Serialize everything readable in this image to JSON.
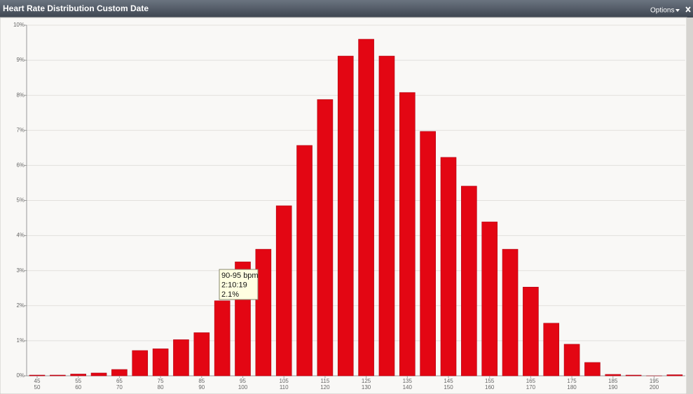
{
  "window": {
    "title": "Heart Rate Distribution Custom Date",
    "options": "Options"
  },
  "chart_data": {
    "type": "bar",
    "color": "#e30613",
    "grid": true,
    "categories": [
      [
        "45",
        "50"
      ],
      null,
      [
        "55",
        "60"
      ],
      null,
      [
        "65",
        "70"
      ],
      null,
      [
        "75",
        "80"
      ],
      null,
      [
        "85",
        "90"
      ],
      null,
      [
        "95",
        "100"
      ],
      null,
      [
        "105",
        "110"
      ],
      null,
      [
        "115",
        "120"
      ],
      null,
      [
        "125",
        "130"
      ],
      null,
      [
        "135",
        "140"
      ],
      null,
      [
        "145",
        "150"
      ],
      null,
      [
        "155",
        "160"
      ],
      null,
      [
        "165",
        "170"
      ],
      null,
      [
        "175",
        "180"
      ],
      null,
      [
        "185",
        "190"
      ],
      null,
      [
        "195",
        "200"
      ],
      null
    ],
    "values": [
      0.02,
      0.02,
      0.05,
      0.08,
      0.18,
      0.72,
      0.77,
      1.03,
      1.23,
      2.14,
      3.25,
      3.61,
      4.85,
      6.57,
      7.88,
      9.12,
      9.6,
      9.12,
      8.08,
      6.97,
      6.23,
      5.41,
      4.39,
      3.61,
      2.53,
      1.5,
      0.9,
      0.38,
      0.04,
      0.02,
      0,
      0.03
    ],
    "ylim": [
      0,
      10
    ],
    "yticks": [
      {
        "value": 0,
        "label": "0%"
      },
      {
        "value": 1,
        "label": "1%"
      },
      {
        "value": 2,
        "label": "2%"
      },
      {
        "value": 3,
        "label": "3%"
      },
      {
        "value": 4,
        "label": "4%"
      },
      {
        "value": 5,
        "label": "5%"
      },
      {
        "value": 6,
        "label": "6%"
      },
      {
        "value": 7,
        "label": "7%"
      },
      {
        "value": 8,
        "label": "8%"
      },
      {
        "value": 9,
        "label": "9%"
      },
      {
        "value": 10,
        "label": "10%"
      }
    ],
    "tooltip": [
      "90-95 bpm",
      "2:10:19",
      "2.1%"
    ]
  }
}
